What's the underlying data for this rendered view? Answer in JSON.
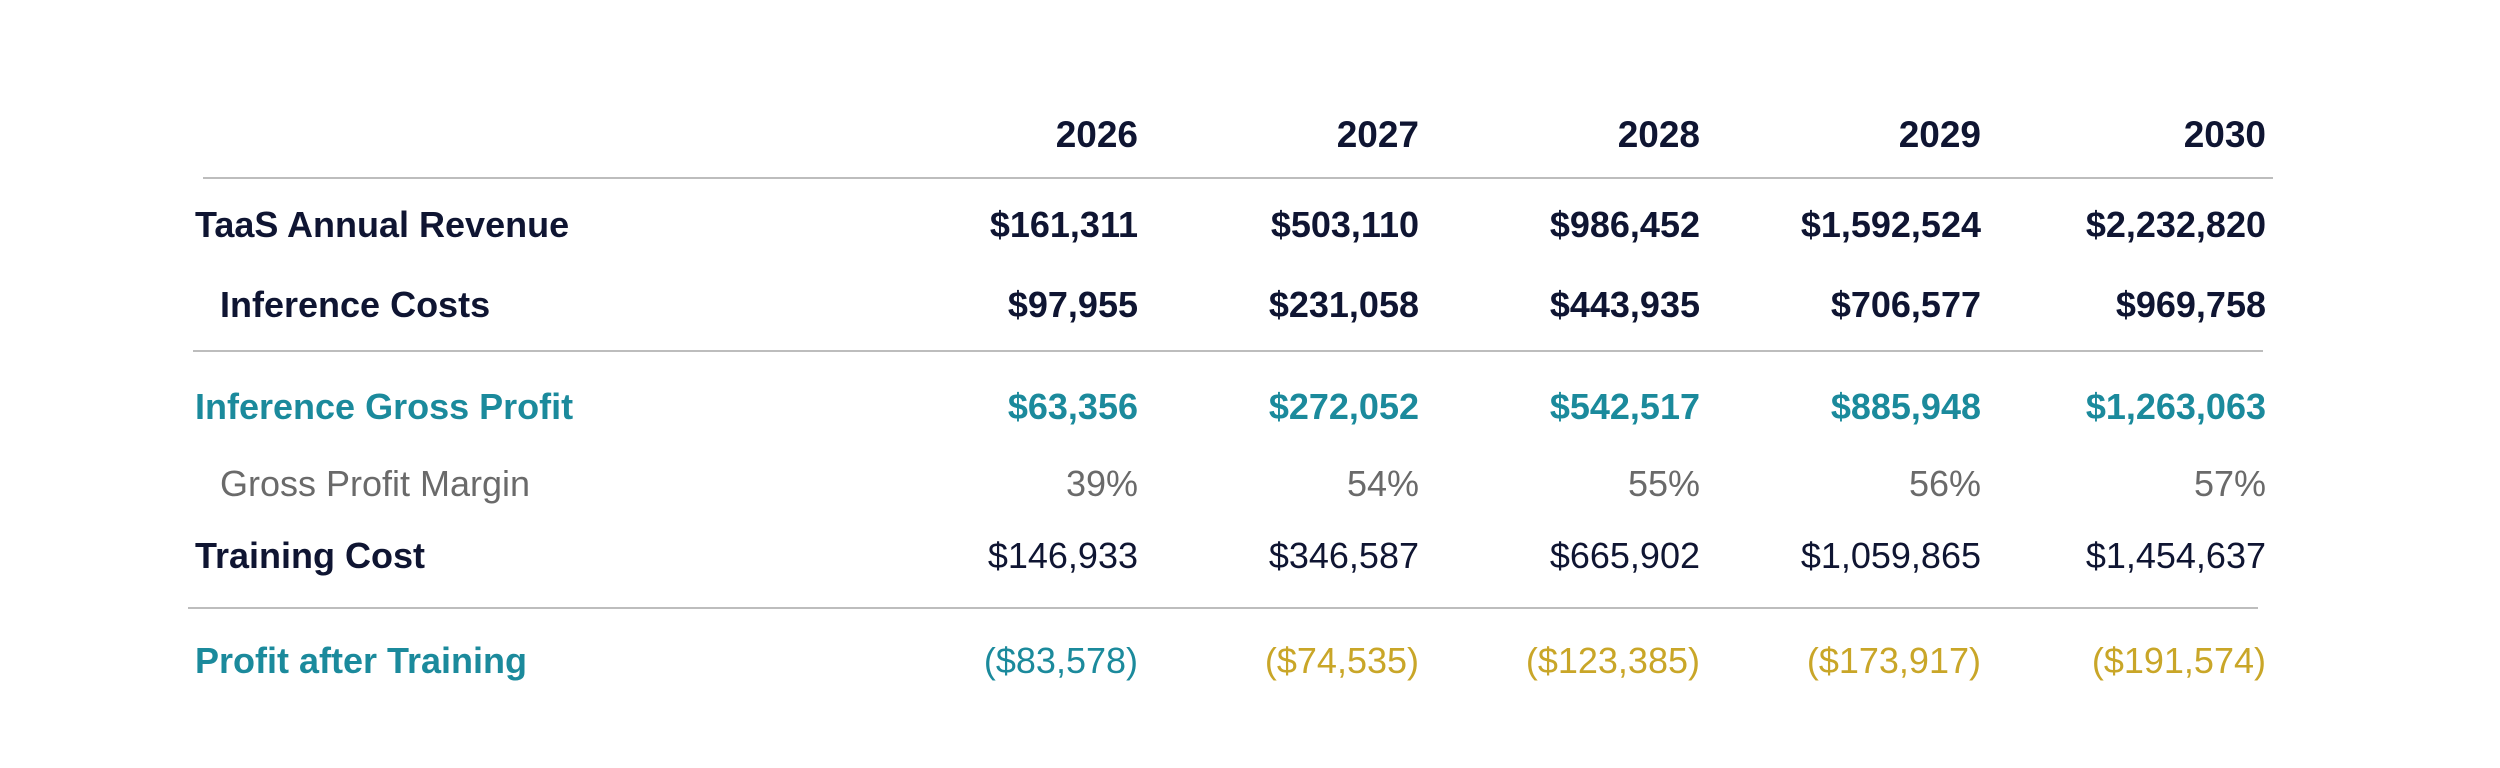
{
  "years": [
    "2026",
    "2027",
    "2028",
    "2029",
    "2030"
  ],
  "rows": [
    {
      "label": "TaaS Annual Revenue",
      "values": [
        "$161,311",
        "$503,110",
        "$986,452",
        "$1,592,524",
        "$2,232,820"
      ]
    },
    {
      "label": "Inference Costs",
      "values": [
        "$97,955",
        "$231,058",
        "$443,935",
        "$706,577",
        "$969,758"
      ]
    },
    {
      "label": "Inference Gross Profit",
      "values": [
        "$63,356",
        "$272,052",
        "$542,517",
        "$885,948",
        "$1,263,063"
      ]
    },
    {
      "label": "Gross Profit Margin",
      "values": [
        "39%",
        "54%",
        "55%",
        "56%",
        "57%"
      ]
    },
    {
      "label": "Training Cost",
      "values": [
        "$146,933",
        "$346,587",
        "$665,902",
        "$1,059,865",
        "$1,454,637"
      ]
    },
    {
      "label": "Profit after Training",
      "values": [
        "($83,578)",
        "($74,535)",
        "($123,385)",
        "($173,917)",
        "($191,574)"
      ]
    }
  ],
  "colors": {
    "navy": "#0f1532",
    "teal": "#1b8a9c",
    "gray": "#6a6a6a",
    "gold": "#c9a628",
    "rule": "#bdbdbd"
  }
}
